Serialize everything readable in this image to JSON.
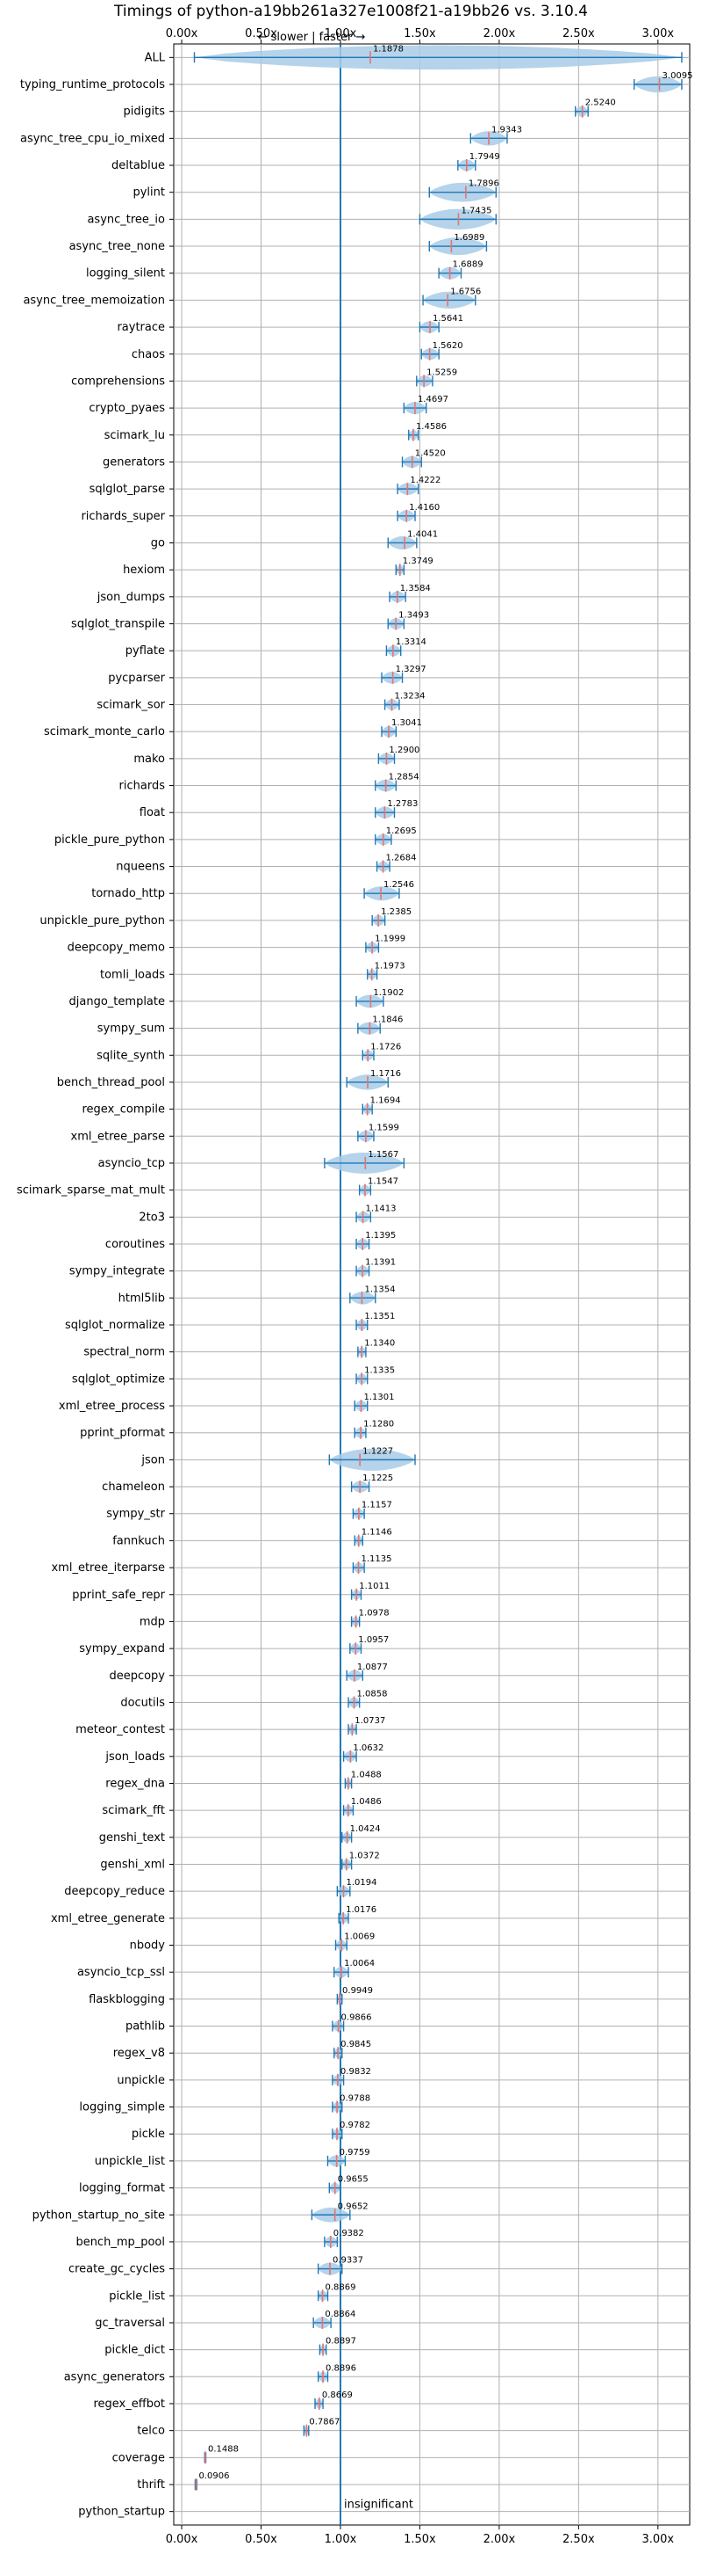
{
  "chart_data": {
    "type": "violin",
    "title": "Timings of python-a19bb261a327e1008f21-a19bb26 vs. 3.10.4",
    "direction_note": "← slower | faster →",
    "insignificant_label": "insignificant",
    "x_ticks": [
      {
        "value": 0.0,
        "label": "0.00x"
      },
      {
        "value": 0.5,
        "label": "0.50x"
      },
      {
        "value": 1.0,
        "label": "1.00x"
      },
      {
        "value": 1.5,
        "label": "1.50x"
      },
      {
        "value": 2.0,
        "label": "2.00x"
      },
      {
        "value": 2.5,
        "label": "2.50x"
      },
      {
        "value": 3.0,
        "label": "3.00x"
      }
    ],
    "xlim": [
      -0.05,
      3.2
    ],
    "reference_line": 1.0,
    "grid": true,
    "colors": {
      "body": "#a8cbe6",
      "line": "#1f77b4",
      "median": "#e57373",
      "ref": "#1f77b4"
    },
    "rows": [
      {
        "name": "ALL",
        "value": 1.1878,
        "label": "1.1878",
        "min": 0.08,
        "max": 3.15
      },
      {
        "name": "typing_runtime_protocols",
        "value": 3.0095,
        "label": "3.0095",
        "min": 2.85,
        "max": 3.15
      },
      {
        "name": "pidigits",
        "value": 2.524,
        "label": "2.5240",
        "min": 2.48,
        "max": 2.56
      },
      {
        "name": "async_tree_cpu_io_mixed",
        "value": 1.9343,
        "label": "1.9343",
        "min": 1.82,
        "max": 2.05
      },
      {
        "name": "deltablue",
        "value": 1.7949,
        "label": "1.7949",
        "min": 1.74,
        "max": 1.85
      },
      {
        "name": "pylint",
        "value": 1.7896,
        "label": "1.7896",
        "min": 1.56,
        "max": 1.98
      },
      {
        "name": "async_tree_io",
        "value": 1.7435,
        "label": "1.7435",
        "min": 1.5,
        "max": 1.98
      },
      {
        "name": "async_tree_none",
        "value": 1.6989,
        "label": "1.6989",
        "min": 1.56,
        "max": 1.92
      },
      {
        "name": "logging_silent",
        "value": 1.6889,
        "label": "1.6889",
        "min": 1.62,
        "max": 1.76
      },
      {
        "name": "async_tree_memoization",
        "value": 1.6756,
        "label": "1.6756",
        "min": 1.52,
        "max": 1.85
      },
      {
        "name": "raytrace",
        "value": 1.5641,
        "label": "1.5641",
        "min": 1.5,
        "max": 1.62
      },
      {
        "name": "chaos",
        "value": 1.562,
        "label": "1.5620",
        "min": 1.51,
        "max": 1.62
      },
      {
        "name": "comprehensions",
        "value": 1.5259,
        "label": "1.5259",
        "min": 1.48,
        "max": 1.58
      },
      {
        "name": "crypto_pyaes",
        "value": 1.4697,
        "label": "1.4697",
        "min": 1.4,
        "max": 1.54
      },
      {
        "name": "scimark_lu",
        "value": 1.4586,
        "label": "1.4586",
        "min": 1.43,
        "max": 1.49
      },
      {
        "name": "generators",
        "value": 1.452,
        "label": "1.4520",
        "min": 1.39,
        "max": 1.51
      },
      {
        "name": "sqlglot_parse",
        "value": 1.4222,
        "label": "1.4222",
        "min": 1.36,
        "max": 1.49
      },
      {
        "name": "richards_super",
        "value": 1.416,
        "label": "1.4160",
        "min": 1.36,
        "max": 1.47
      },
      {
        "name": "go",
        "value": 1.4041,
        "label": "1.4041",
        "min": 1.3,
        "max": 1.48
      },
      {
        "name": "hexiom",
        "value": 1.3749,
        "label": "1.3749",
        "min": 1.35,
        "max": 1.4
      },
      {
        "name": "json_dumps",
        "value": 1.3584,
        "label": "1.3584",
        "min": 1.31,
        "max": 1.41
      },
      {
        "name": "sqlglot_transpile",
        "value": 1.3493,
        "label": "1.3493",
        "min": 1.3,
        "max": 1.4
      },
      {
        "name": "pyflate",
        "value": 1.3314,
        "label": "1.3314",
        "min": 1.29,
        "max": 1.38
      },
      {
        "name": "pycparser",
        "value": 1.3297,
        "label": "1.3297",
        "min": 1.26,
        "max": 1.39
      },
      {
        "name": "scimark_sor",
        "value": 1.3234,
        "label": "1.3234",
        "min": 1.28,
        "max": 1.37
      },
      {
        "name": "scimark_monte_carlo",
        "value": 1.3041,
        "label": "1.3041",
        "min": 1.26,
        "max": 1.35
      },
      {
        "name": "mako",
        "value": 1.29,
        "label": "1.2900",
        "min": 1.24,
        "max": 1.34
      },
      {
        "name": "richards",
        "value": 1.2854,
        "label": "1.2854",
        "min": 1.22,
        "max": 1.35
      },
      {
        "name": "float",
        "value": 1.2783,
        "label": "1.2783",
        "min": 1.22,
        "max": 1.34
      },
      {
        "name": "pickle_pure_python",
        "value": 1.2695,
        "label": "1.2695",
        "min": 1.22,
        "max": 1.32
      },
      {
        "name": "nqueens",
        "value": 1.2684,
        "label": "1.2684",
        "min": 1.23,
        "max": 1.31
      },
      {
        "name": "tornado_http",
        "value": 1.2546,
        "label": "1.2546",
        "min": 1.15,
        "max": 1.37
      },
      {
        "name": "unpickle_pure_python",
        "value": 1.2385,
        "label": "1.2385",
        "min": 1.2,
        "max": 1.28
      },
      {
        "name": "deepcopy_memo",
        "value": 1.1999,
        "label": "1.1999",
        "min": 1.16,
        "max": 1.24
      },
      {
        "name": "tomli_loads",
        "value": 1.1973,
        "label": "1.1973",
        "min": 1.17,
        "max": 1.23
      },
      {
        "name": "django_template",
        "value": 1.1902,
        "label": "1.1902",
        "min": 1.1,
        "max": 1.27
      },
      {
        "name": "sympy_sum",
        "value": 1.1846,
        "label": "1.1846",
        "min": 1.11,
        "max": 1.25
      },
      {
        "name": "sqlite_synth",
        "value": 1.1726,
        "label": "1.1726",
        "min": 1.14,
        "max": 1.21
      },
      {
        "name": "bench_thread_pool",
        "value": 1.1716,
        "label": "1.1716",
        "min": 1.04,
        "max": 1.3
      },
      {
        "name": "regex_compile",
        "value": 1.1694,
        "label": "1.1694",
        "min": 1.14,
        "max": 1.2
      },
      {
        "name": "xml_etree_parse",
        "value": 1.1599,
        "label": "1.1599",
        "min": 1.11,
        "max": 1.21
      },
      {
        "name": "asyncio_tcp",
        "value": 1.1567,
        "label": "1.1567",
        "min": 0.9,
        "max": 1.4
      },
      {
        "name": "scimark_sparse_mat_mult",
        "value": 1.1547,
        "label": "1.1547",
        "min": 1.12,
        "max": 1.19
      },
      {
        "name": "2to3",
        "value": 1.1413,
        "label": "1.1413",
        "min": 1.1,
        "max": 1.19
      },
      {
        "name": "coroutines",
        "value": 1.1395,
        "label": "1.1395",
        "min": 1.1,
        "max": 1.18
      },
      {
        "name": "sympy_integrate",
        "value": 1.1391,
        "label": "1.1391",
        "min": 1.1,
        "max": 1.18
      },
      {
        "name": "html5lib",
        "value": 1.1354,
        "label": "1.1354",
        "min": 1.06,
        "max": 1.22
      },
      {
        "name": "sqlglot_normalize",
        "value": 1.1351,
        "label": "1.1351",
        "min": 1.1,
        "max": 1.17
      },
      {
        "name": "spectral_norm",
        "value": 1.134,
        "label": "1.1340",
        "min": 1.11,
        "max": 1.16
      },
      {
        "name": "sqlglot_optimize",
        "value": 1.1335,
        "label": "1.1335",
        "min": 1.1,
        "max": 1.17
      },
      {
        "name": "xml_etree_process",
        "value": 1.1301,
        "label": "1.1301",
        "min": 1.09,
        "max": 1.17
      },
      {
        "name": "pprint_pformat",
        "value": 1.128,
        "label": "1.1280",
        "min": 1.09,
        "max": 1.16
      },
      {
        "name": "json",
        "value": 1.1227,
        "label": "1.1227",
        "min": 0.93,
        "max": 1.47
      },
      {
        "name": "chameleon",
        "value": 1.1225,
        "label": "1.1225",
        "min": 1.07,
        "max": 1.18
      },
      {
        "name": "sympy_str",
        "value": 1.1157,
        "label": "1.1157",
        "min": 1.08,
        "max": 1.15
      },
      {
        "name": "fannkuch",
        "value": 1.1146,
        "label": "1.1146",
        "min": 1.09,
        "max": 1.14
      },
      {
        "name": "xml_etree_iterparse",
        "value": 1.1135,
        "label": "1.1135",
        "min": 1.08,
        "max": 1.15
      },
      {
        "name": "pprint_safe_repr",
        "value": 1.1011,
        "label": "1.1011",
        "min": 1.07,
        "max": 1.13
      },
      {
        "name": "mdp",
        "value": 1.0978,
        "label": "1.0978",
        "min": 1.07,
        "max": 1.12
      },
      {
        "name": "sympy_expand",
        "value": 1.0957,
        "label": "1.0957",
        "min": 1.06,
        "max": 1.13
      },
      {
        "name": "deepcopy",
        "value": 1.0877,
        "label": "1.0877",
        "min": 1.04,
        "max": 1.14
      },
      {
        "name": "docutils",
        "value": 1.0858,
        "label": "1.0858",
        "min": 1.05,
        "max": 1.12
      },
      {
        "name": "meteor_contest",
        "value": 1.0737,
        "label": "1.0737",
        "min": 1.05,
        "max": 1.1
      },
      {
        "name": "json_loads",
        "value": 1.0632,
        "label": "1.0632",
        "min": 1.02,
        "max": 1.1
      },
      {
        "name": "regex_dna",
        "value": 1.0488,
        "label": "1.0488",
        "min": 1.03,
        "max": 1.07
      },
      {
        "name": "scimark_fft",
        "value": 1.0486,
        "label": "1.0486",
        "min": 1.02,
        "max": 1.08
      },
      {
        "name": "genshi_text",
        "value": 1.0424,
        "label": "1.0424",
        "min": 1.01,
        "max": 1.07
      },
      {
        "name": "genshi_xml",
        "value": 1.0372,
        "label": "1.0372",
        "min": 1.01,
        "max": 1.07
      },
      {
        "name": "deepcopy_reduce",
        "value": 1.0194,
        "label": "1.0194",
        "min": 0.98,
        "max": 1.06
      },
      {
        "name": "xml_etree_generate",
        "value": 1.0176,
        "label": "1.0176",
        "min": 0.99,
        "max": 1.05
      },
      {
        "name": "nbody",
        "value": 1.0069,
        "label": "1.0069",
        "min": 0.97,
        "max": 1.04
      },
      {
        "name": "asyncio_tcp_ssl",
        "value": 1.0064,
        "label": "1.0064",
        "min": 0.96,
        "max": 1.05
      },
      {
        "name": "flaskblogging",
        "value": 0.9949,
        "label": "0.9949",
        "min": 0.98,
        "max": 1.01
      },
      {
        "name": "pathlib",
        "value": 0.9866,
        "label": "0.9866",
        "min": 0.95,
        "max": 1.02
      },
      {
        "name": "regex_v8",
        "value": 0.9845,
        "label": "0.9845",
        "min": 0.96,
        "max": 1.01
      },
      {
        "name": "unpickle",
        "value": 0.9832,
        "label": "0.9832",
        "min": 0.95,
        "max": 1.02
      },
      {
        "name": "logging_simple",
        "value": 0.9788,
        "label": "0.9788",
        "min": 0.95,
        "max": 1.01
      },
      {
        "name": "pickle",
        "value": 0.9782,
        "label": "0.9782",
        "min": 0.95,
        "max": 1.01
      },
      {
        "name": "unpickle_list",
        "value": 0.9759,
        "label": "0.9759",
        "min": 0.92,
        "max": 1.03
      },
      {
        "name": "logging_format",
        "value": 0.9655,
        "label": "0.9655",
        "min": 0.93,
        "max": 1.0
      },
      {
        "name": "python_startup_no_site",
        "value": 0.9652,
        "label": "0.9652",
        "min": 0.82,
        "max": 1.06
      },
      {
        "name": "bench_mp_pool",
        "value": 0.9382,
        "label": "0.9382",
        "min": 0.9,
        "max": 0.98
      },
      {
        "name": "create_gc_cycles",
        "value": 0.9337,
        "label": "0.9337",
        "min": 0.86,
        "max": 1.01
      },
      {
        "name": "pickle_list",
        "value": 0.8869,
        "label": "0.8869",
        "min": 0.86,
        "max": 0.92
      },
      {
        "name": "gc_traversal",
        "value": 0.8864,
        "label": "0.8864",
        "min": 0.83,
        "max": 0.94
      },
      {
        "name": "pickle_dict",
        "value": 0.8897,
        "label": "0.8897",
        "min": 0.87,
        "max": 0.91
      },
      {
        "name": "async_generators",
        "value": 0.8896,
        "label": "0.8896",
        "min": 0.86,
        "max": 0.92
      },
      {
        "name": "regex_effbot",
        "value": 0.8669,
        "label": "0.8669",
        "min": 0.84,
        "max": 0.89
      },
      {
        "name": "telco",
        "value": 0.7867,
        "label": "0.7867",
        "min": 0.77,
        "max": 0.8
      },
      {
        "name": "coverage",
        "value": 0.1488,
        "label": "0.1488",
        "min": 0.145,
        "max": 0.152
      },
      {
        "name": "thrift",
        "value": 0.0906,
        "label": "0.0906",
        "min": 0.085,
        "max": 0.095
      },
      {
        "name": "python_startup",
        "value": null,
        "label": "",
        "min": null,
        "max": null
      }
    ]
  }
}
